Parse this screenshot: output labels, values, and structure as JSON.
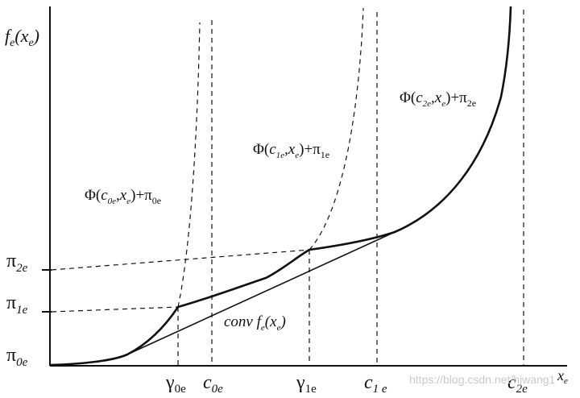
{
  "colors": {
    "ink": "#111111",
    "background": "#ffffff",
    "watermark": "#c9c9c9"
  },
  "y_axis": {
    "label_base": "f",
    "label_sub": "e",
    "label_arg_open": "(x",
    "label_arg_sub": "e",
    "label_arg_close": ")"
  },
  "x_axis": {
    "label_base": "x",
    "label_sub": "e"
  },
  "y_ticks": [
    {
      "base": "π",
      "sub": "2e"
    },
    {
      "base": "π",
      "sub": "1e"
    },
    {
      "base": "π",
      "sub": "0e"
    }
  ],
  "x_ticks": [
    {
      "base": "γ",
      "sub": "0e"
    },
    {
      "base": "c",
      "sub": "0e"
    },
    {
      "base": "γ",
      "sub": "1e"
    },
    {
      "base": "c",
      "sub": "1 e"
    },
    {
      "base": "c",
      "sub": "2e"
    }
  ],
  "curve_labels": {
    "phi0": {
      "prefix": "Φ(",
      "c": "c",
      "c_sub": "0e",
      "sep": ",x",
      "x_sub": "e",
      "suffix": ")+π",
      "pi_sub": "0e"
    },
    "phi1": {
      "prefix": "Φ(",
      "c": "c",
      "c_sub": "1e",
      "sep": ",x",
      "x_sub": "e",
      "suffix": ")+π",
      "pi_sub": "1e"
    },
    "phi2": {
      "prefix": "Φ(",
      "c": "c",
      "c_sub": "2e",
      "sep": ",x",
      "x_sub": "e",
      "suffix": ")+π",
      "pi_sub": "2e"
    }
  },
  "conv_label": {
    "conv": "conv",
    "f": "f",
    "f_sub": "e",
    "arg_open": "(x",
    "arg_sub": "e",
    "arg_close": ")"
  },
  "watermark": {
    "text": "https://blog.csdn.net/hjwang1"
  }
}
